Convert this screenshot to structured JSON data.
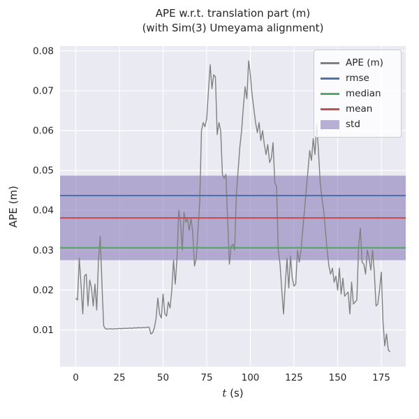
{
  "figure": {
    "title_line1": "APE w.r.t. translation part (m)",
    "title_line2": "(with Sim(3) Umeyama alignment)",
    "ylabel": "APE (m)",
    "xlabel_var": "t",
    "xlabel_unit": " (s)"
  },
  "legend": {
    "items": [
      {
        "label": "APE (m)",
        "type": "line",
        "color": "#808080"
      },
      {
        "label": "rmse",
        "type": "line",
        "color": "#4c72b0"
      },
      {
        "label": "median",
        "type": "line",
        "color": "#55a868"
      },
      {
        "label": "mean",
        "type": "line",
        "color": "#c44e52"
      },
      {
        "label": "std",
        "type": "patch",
        "color": "#8172b2"
      }
    ]
  },
  "style": {
    "axes_bg": "#eaeaf2",
    "grid": "#ffffff",
    "text": "#262626",
    "ape": "#808080",
    "rmse": "#4c72b0",
    "median": "#55a868",
    "mean": "#c44e52",
    "std": "#8172b2",
    "std_opacity": 0.55
  },
  "chart_data": {
    "type": "line",
    "title": "APE w.r.t. translation part (m) (with Sim(3) Umeyama alignment)",
    "xlabel": "t (s)",
    "ylabel": "APE (m)",
    "grid": true,
    "legend_position": "upper right",
    "xlim": [
      -9,
      189
    ],
    "ylim": [
      0.0008,
      0.0812
    ],
    "x_ticks": [
      0,
      25,
      50,
      75,
      100,
      125,
      150,
      175
    ],
    "y_ticks": [
      0.01,
      0.02,
      0.03,
      0.04,
      0.05,
      0.06,
      0.07,
      0.08
    ],
    "stats": {
      "rmse": 0.0437,
      "mean": 0.0381,
      "median": 0.0306,
      "std": 0.0106
    },
    "std_band": [
      0.0275,
      0.0487
    ],
    "series": [
      {
        "name": "APE (m)",
        "x": [
          0,
          1,
          2,
          3,
          4,
          5,
          6,
          7,
          8,
          9,
          10,
          11,
          12,
          13,
          14,
          15,
          16,
          17,
          18,
          19,
          20,
          21,
          22,
          23,
          24,
          25,
          26,
          27,
          28,
          29,
          30,
          31,
          32,
          33,
          34,
          35,
          36,
          37,
          38,
          39,
          40,
          41,
          42,
          43,
          44,
          45,
          46,
          47,
          48,
          49,
          50,
          51,
          52,
          53,
          54,
          55,
          56,
          57,
          58,
          59,
          60,
          61,
          62,
          63,
          64,
          65,
          66,
          67,
          68,
          69,
          70,
          71,
          72,
          73,
          74,
          75,
          76,
          77,
          78,
          79,
          80,
          81,
          82,
          83,
          84,
          85,
          86,
          87,
          88,
          89,
          90,
          91,
          92,
          93,
          94,
          95,
          96,
          97,
          98,
          99,
          100,
          101,
          102,
          103,
          104,
          105,
          106,
          107,
          108,
          109,
          110,
          111,
          112,
          113,
          114,
          115,
          116,
          117,
          118,
          119,
          120,
          121,
          122,
          123,
          124,
          125,
          126,
          127,
          128,
          129,
          130,
          131,
          132,
          133,
          134,
          135,
          136,
          137,
          138,
          139,
          140,
          141,
          142,
          143,
          144,
          145,
          146,
          147,
          148,
          149,
          150,
          151,
          152,
          153,
          154,
          155,
          156,
          157,
          158,
          159,
          160,
          161,
          162,
          163,
          164,
          165,
          166,
          167,
          168,
          169,
          170,
          171,
          172,
          173,
          174,
          175,
          176,
          177,
          178,
          179,
          180
        ],
        "y": [
          0.018,
          0.0175,
          0.028,
          0.0215,
          0.014,
          0.0235,
          0.024,
          0.016,
          0.0225,
          0.0205,
          0.016,
          0.0215,
          0.015,
          0.0275,
          0.0335,
          0.0215,
          0.011,
          0.0103,
          0.0102,
          0.0103,
          0.0103,
          0.0102,
          0.0103,
          0.0103,
          0.0103,
          0.0104,
          0.0103,
          0.0104,
          0.0104,
          0.0104,
          0.0104,
          0.0105,
          0.0104,
          0.0105,
          0.0105,
          0.0105,
          0.0106,
          0.0105,
          0.0106,
          0.0106,
          0.0106,
          0.0107,
          0.0107,
          0.009,
          0.0093,
          0.0105,
          0.013,
          0.018,
          0.014,
          0.013,
          0.019,
          0.014,
          0.0135,
          0.017,
          0.0155,
          0.02,
          0.0275,
          0.0215,
          0.028,
          0.04,
          0.037,
          0.03,
          0.0395,
          0.037,
          0.038,
          0.035,
          0.038,
          0.0345,
          0.026,
          0.028,
          0.035,
          0.042,
          0.06,
          0.062,
          0.061,
          0.063,
          0.07,
          0.0765,
          0.0705,
          0.074,
          0.0735,
          0.059,
          0.062,
          0.06,
          0.049,
          0.048,
          0.049,
          0.0375,
          0.0265,
          0.031,
          0.0315,
          0.03,
          0.044,
          0.05,
          0.056,
          0.06,
          0.066,
          0.071,
          0.068,
          0.0775,
          0.074,
          0.069,
          0.0655,
          0.062,
          0.0595,
          0.062,
          0.0575,
          0.06,
          0.0565,
          0.054,
          0.0565,
          0.052,
          0.053,
          0.057,
          0.047,
          0.046,
          0.03,
          0.0265,
          0.02,
          0.014,
          0.0215,
          0.028,
          0.0205,
          0.0285,
          0.023,
          0.021,
          0.0215,
          0.03,
          0.027,
          0.03,
          0.035,
          0.04,
          0.045,
          0.05,
          0.055,
          0.0525,
          0.058,
          0.054,
          0.0615,
          0.055,
          0.047,
          0.043,
          0.04,
          0.035,
          0.03,
          0.026,
          0.024,
          0.0255,
          0.022,
          0.0235,
          0.02,
          0.0255,
          0.019,
          0.023,
          0.0185,
          0.019,
          0.0195,
          0.014,
          0.022,
          0.0165,
          0.017,
          0.0175,
          0.031,
          0.0355,
          0.027,
          0.0265,
          0.024,
          0.03,
          0.028,
          0.025,
          0.03,
          0.0245,
          0.016,
          0.0165,
          0.02,
          0.0245,
          0.012,
          0.006,
          0.009,
          0.005,
          0.0045
        ]
      }
    ]
  }
}
